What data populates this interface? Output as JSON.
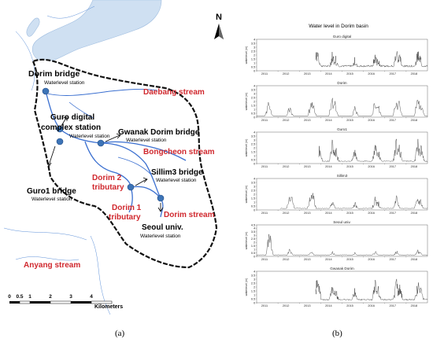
{
  "map": {
    "panel_label": "(a)",
    "north": "N",
    "stations": {
      "dorim_bridge": {
        "name": "Dorim bridge",
        "type": "Waterlevel station"
      },
      "guro_digital": {
        "name_line1": "Guro digital",
        "name_line2": "complex station",
        "type": "Waterlevel station"
      },
      "gwanak_dorim": {
        "name": "Gwanak Dorim bridge",
        "type": "Waterlevel station"
      },
      "guro1": {
        "name": "Guro1 bridge",
        "type": "Waterlevel station"
      },
      "sillim3": {
        "name": "Sillim3 bridge",
        "type": "Waterlevel station"
      },
      "seoul_univ": {
        "name": "Seoul univ.",
        "type": "Waterlevel station"
      }
    },
    "streams": {
      "daebang": "Daebang stream",
      "bongcheon": "Bongcheon stream",
      "dorim2_line1": "Dorim 2",
      "dorim2_line2": "tributary",
      "dorim1_line1": "Dorim 1",
      "dorim1_line2": "tributary",
      "dorim": "Dorim stream",
      "anyang": "Anyang stream"
    },
    "scale": {
      "ticks": [
        "0",
        "0.5",
        "1",
        "2",
        "3",
        "4"
      ],
      "unit": "Kilometers"
    },
    "colors": {
      "river": "#3a6fd0",
      "station": "#3d74b7",
      "boundary": "#111111",
      "water": "#cfe0f2",
      "label_red": "#d0282e"
    }
  },
  "chart_data": {
    "type": "line",
    "panel_label": "(b)",
    "title": "Water level in Dorim basin",
    "ylabel": "waterlevel (m)",
    "x_ticks": [
      "2011",
      "2012",
      "2013",
      "2014",
      "2015",
      "2016",
      "2017",
      "2018"
    ],
    "y_ticks": [
      "0",
      "0.5",
      "1",
      "1.5",
      "2",
      "2.5",
      "3",
      "3.5",
      "4"
    ],
    "ylim": [
      0,
      4
    ],
    "xlim": [
      2011,
      2019
    ],
    "seoul_univ_y_ticks": [
      "0",
      "0.5",
      "1",
      "1.5",
      "2",
      "2.5",
      "3",
      "3.5",
      "4",
      "4.5"
    ],
    "seoul_univ_ylim": [
      0,
      4.5
    ],
    "series": [
      {
        "name": "Guro digital",
        "start": 2013.75,
        "base": 0.6,
        "peaks": [
          [
            2013.82,
            3.2
          ],
          [
            2013.9,
            2.5
          ],
          [
            2014.55,
            2.8
          ],
          [
            2014.7,
            2.2
          ],
          [
            2015.6,
            1.9
          ],
          [
            2016.55,
            2.6
          ],
          [
            2016.7,
            2.0
          ],
          [
            2017.55,
            3.3
          ],
          [
            2017.7,
            2.4
          ],
          [
            2018.55,
            2.9
          ],
          [
            2018.65,
            2.2
          ]
        ]
      },
      {
        "name": "Dorim",
        "start": 2011.0,
        "base": 0.15,
        "peaks": [
          [
            2011.55,
            2.0
          ],
          [
            2011.6,
            1.6
          ],
          [
            2012.55,
            1.8
          ],
          [
            2013.55,
            2.3
          ],
          [
            2013.62,
            3.0
          ],
          [
            2014.55,
            3.2
          ],
          [
            2014.65,
            2.5
          ],
          [
            2015.6,
            1.4
          ],
          [
            2016.55,
            2.8
          ],
          [
            2016.68,
            2.0
          ],
          [
            2017.55,
            3.4
          ],
          [
            2017.65,
            2.7
          ],
          [
            2018.55,
            3.0
          ],
          [
            2018.7,
            2.1
          ]
        ]
      },
      {
        "name": "Guro1",
        "start": 2013.9,
        "base": 0.3,
        "peaks": [
          [
            2013.95,
            2.7
          ],
          [
            2014.55,
            3.3
          ],
          [
            2014.7,
            2.4
          ],
          [
            2015.6,
            2.2
          ],
          [
            2016.55,
            3.0
          ],
          [
            2016.7,
            2.2
          ],
          [
            2017.55,
            3.6
          ],
          [
            2017.68,
            2.8
          ],
          [
            2018.55,
            3.2
          ],
          [
            2018.7,
            2.5
          ]
        ]
      },
      {
        "name": "Sillim3",
        "start": 2012.1,
        "base": 0.2,
        "peaks": [
          [
            2012.55,
            2.0
          ],
          [
            2012.62,
            2.6
          ],
          [
            2013.55,
            3.4
          ],
          [
            2013.62,
            2.8
          ],
          [
            2014.55,
            1.4
          ],
          [
            2015.6,
            1.1
          ],
          [
            2016.55,
            1.8
          ],
          [
            2016.68,
            1.3
          ],
          [
            2017.55,
            1.9
          ],
          [
            2018.55,
            2.3
          ],
          [
            2018.65,
            1.6
          ]
        ]
      },
      {
        "name": "Seoul univ.",
        "start": 2011.0,
        "base": 0.2,
        "peaks": [
          [
            2011.55,
            1.2
          ],
          [
            2011.6,
            4.2
          ],
          [
            2012.55,
            1.3
          ],
          [
            2013.55,
            0.9
          ],
          [
            2014.55,
            0.8
          ],
          [
            2015.6,
            0.6
          ],
          [
            2016.55,
            0.9
          ],
          [
            2017.55,
            1.1
          ],
          [
            2018.55,
            1.0
          ],
          [
            2018.65,
            0.7
          ]
        ]
      },
      {
        "name": "Gwanak Dorim",
        "start": 2013.75,
        "base": 0.4,
        "peaks": [
          [
            2013.82,
            3.4
          ],
          [
            2013.9,
            2.6
          ],
          [
            2014.55,
            3.0
          ],
          [
            2014.7,
            2.2
          ],
          [
            2015.6,
            2.0
          ],
          [
            2016.55,
            3.1
          ],
          [
            2016.7,
            2.3
          ],
          [
            2017.55,
            3.5
          ],
          [
            2017.7,
            2.7
          ],
          [
            2018.55,
            3.3
          ],
          [
            2018.7,
            2.4
          ]
        ]
      }
    ]
  }
}
